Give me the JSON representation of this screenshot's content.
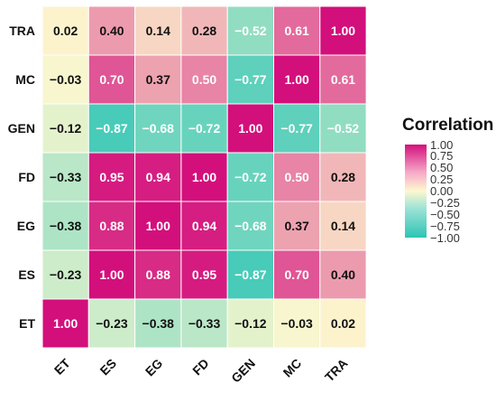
{
  "chart_data": {
    "type": "heatmap",
    "title": "",
    "xlabel": "",
    "ylabel": "",
    "x_categories": [
      "ET",
      "ES",
      "EG",
      "FD",
      "GEN",
      "MC",
      "TRA"
    ],
    "y_categories": [
      "TRA",
      "MC",
      "GEN",
      "FD",
      "EG",
      "ES",
      "ET"
    ],
    "values": [
      [
        0.02,
        0.4,
        0.14,
        0.28,
        -0.52,
        0.61,
        1.0
      ],
      [
        -0.03,
        0.7,
        0.37,
        0.5,
        -0.77,
        1.0,
        0.61
      ],
      [
        -0.12,
        -0.87,
        -0.68,
        -0.72,
        1.0,
        -0.77,
        -0.52
      ],
      [
        -0.33,
        0.95,
        0.94,
        1.0,
        -0.72,
        0.5,
        0.28
      ],
      [
        -0.38,
        0.88,
        1.0,
        0.94,
        -0.68,
        0.37,
        0.14
      ],
      [
        -0.23,
        1.0,
        0.88,
        0.95,
        -0.87,
        0.7,
        0.4
      ],
      [
        1.0,
        -0.23,
        -0.38,
        -0.33,
        -0.12,
        -0.03,
        0.02
      ]
    ],
    "value_labels": [
      [
        "0.02",
        "0.40",
        "0.14",
        "0.28",
        "−0.52",
        "0.61",
        "1.00"
      ],
      [
        "−0.03",
        "0.70",
        "0.37",
        "0.50",
        "−0.77",
        "1.00",
        "0.61"
      ],
      [
        "−0.12",
        "−0.87",
        "−0.68",
        "−0.72",
        "1.00",
        "−0.77",
        "−0.52"
      ],
      [
        "−0.33",
        "0.95",
        "0.94",
        "1.00",
        "−0.72",
        "0.50",
        "0.28"
      ],
      [
        "−0.38",
        "0.88",
        "1.00",
        "0.94",
        "−0.68",
        "0.37",
        "0.14"
      ],
      [
        "−0.23",
        "1.00",
        "0.88",
        "0.95",
        "−0.87",
        "0.70",
        "0.40"
      ],
      [
        "1.00",
        "−0.23",
        "−0.38",
        "−0.33",
        "−0.12",
        "−0.03",
        "0.02"
      ]
    ],
    "color_range": [
      -1,
      1
    ],
    "colors": {
      "low": "#2ec4b6",
      "mid": "#fdf8cf",
      "high": "#d30f7c"
    },
    "legend": {
      "title": "Correlation",
      "ticks": [
        1.0,
        0.75,
        0.5,
        0.25,
        0.0,
        -0.25,
        -0.5,
        -0.75,
        -1.0
      ],
      "tick_labels": [
        "1.00",
        "0.75",
        "0.50",
        "0.25",
        "0.00",
        "−0.25",
        "−0.50",
        "−0.75",
        "−1.00"
      ],
      "position": "right"
    }
  }
}
